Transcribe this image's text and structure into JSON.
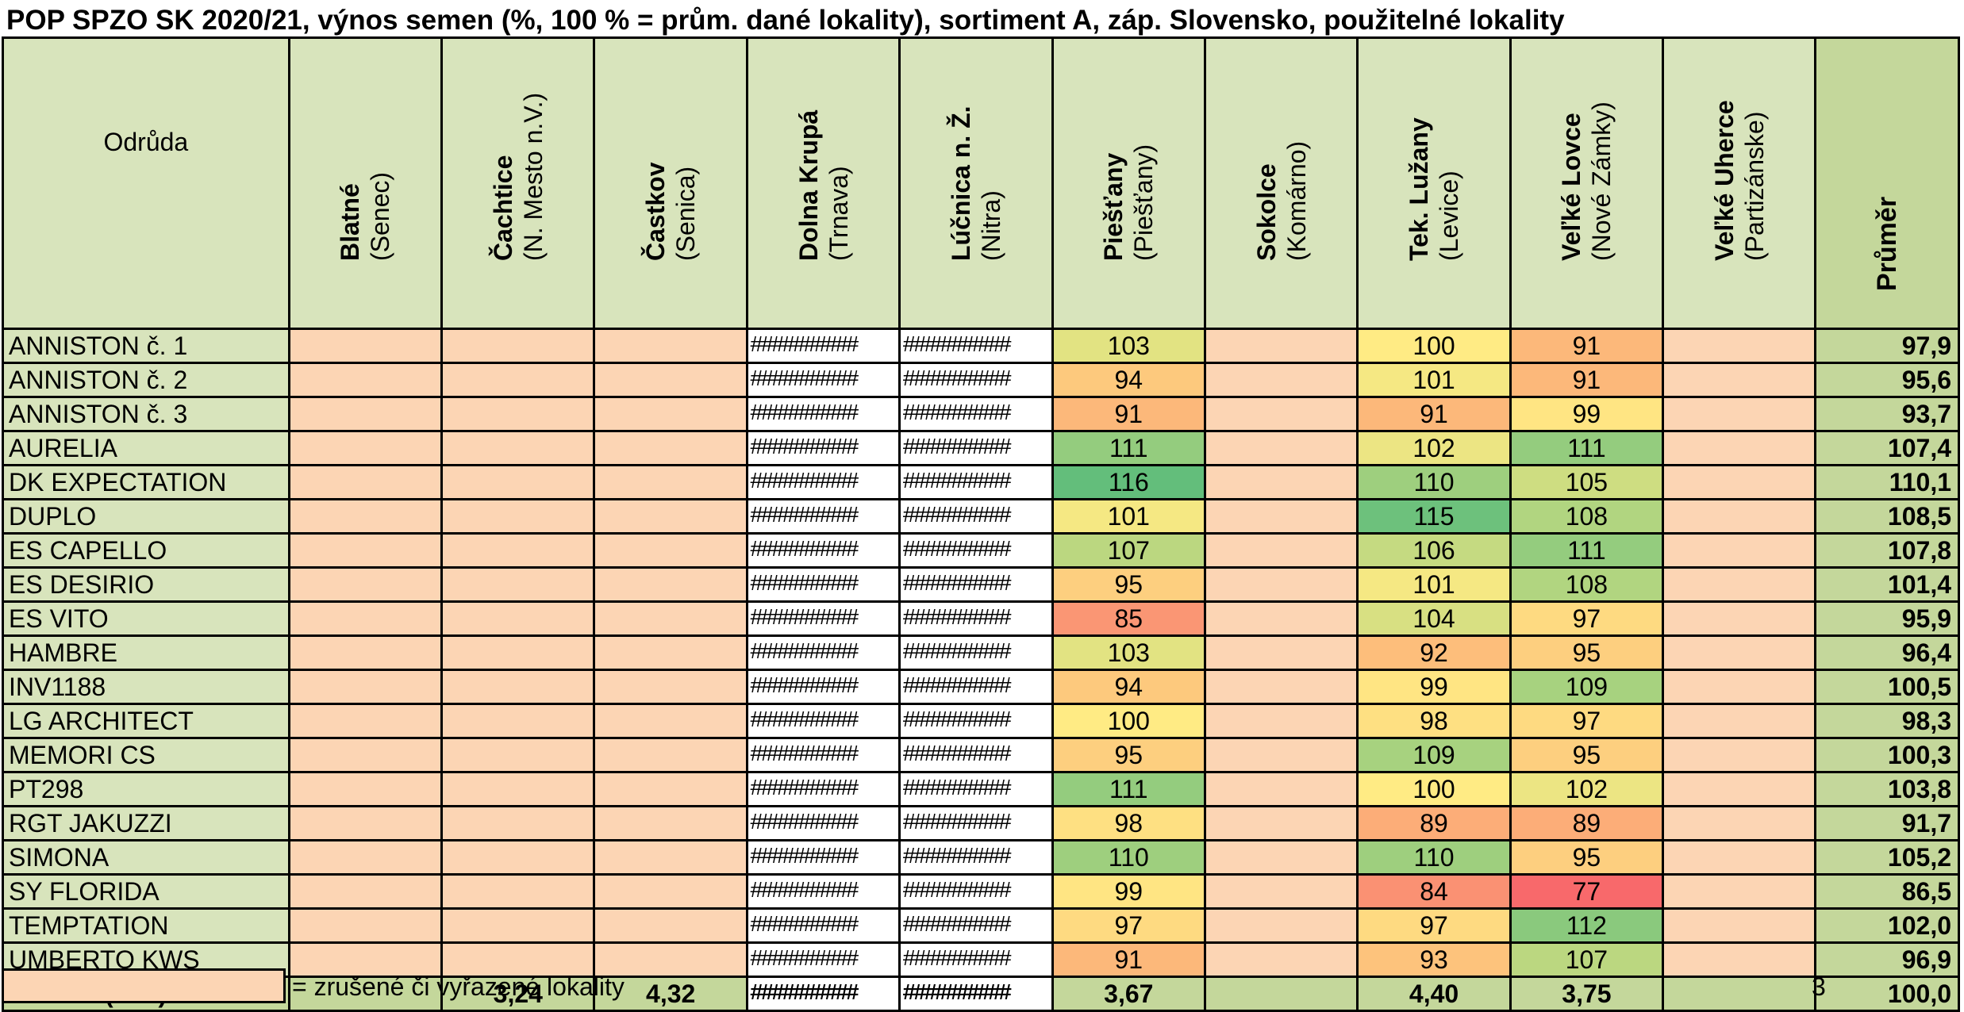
{
  "title": "POP SPZO SK 2020/21, výnos semen (%, 100 % = prům. dané lokality), sortiment A, záp. Slovensko, použitelné lokality",
  "header": {
    "variety": "Odrůda",
    "locations": [
      {
        "name": "Blatné",
        "district": "(Senec)",
        "status": "cancelled"
      },
      {
        "name": "Čachtice",
        "district": "(N. Mesto n.V.)",
        "status": "cancelled"
      },
      {
        "name": "Častkov",
        "district": "(Senica)",
        "status": "cancelled"
      },
      {
        "name": "Dolna Krupá",
        "district": "(Trnava)",
        "status": "overflow"
      },
      {
        "name": "Lúčnica n. Ž.",
        "district": "(Nitra)",
        "status": "overflow"
      },
      {
        "name": "Piešťany",
        "district": "(Piešťany)",
        "status": "valid"
      },
      {
        "name": "Sokolce",
        "district": "(Komárno)",
        "status": "cancelled"
      },
      {
        "name": "Tek. Lužany",
        "district": "(Levice)",
        "status": "valid"
      },
      {
        "name": "Veľké Lovce",
        "district": "(Nové Zámky)",
        "status": "valid"
      },
      {
        "name": "Veľké Uherce",
        "district": "(Partizánske)",
        "status": "cancelled"
      }
    ],
    "average": "Průměr"
  },
  "overflow_text": "##########",
  "rows": [
    {
      "name": "ANNISTON   č. 1",
      "piestany": "103",
      "levice": "100",
      "lovce": "91",
      "avg": "97,9"
    },
    {
      "name": "ANNISTON   č. 2",
      "piestany": "94",
      "levice": "101",
      "lovce": "91",
      "avg": "95,6"
    },
    {
      "name": "ANNISTON   č. 3",
      "piestany": "91",
      "levice": "91",
      "lovce": "99",
      "avg": "93,7"
    },
    {
      "name": "AURELIA",
      "piestany": "111",
      "levice": "102",
      "lovce": "111",
      "avg": "107,4"
    },
    {
      "name": "DK EXPECTATION",
      "piestany": "116",
      "levice": "110",
      "lovce": "105",
      "avg": "110,1"
    },
    {
      "name": "DUPLO",
      "piestany": "101",
      "levice": "115",
      "lovce": "108",
      "avg": "108,5"
    },
    {
      "name": "ES CAPELLO",
      "piestany": "107",
      "levice": "106",
      "lovce": "111",
      "avg": "107,8"
    },
    {
      "name": "ES DESIRIO",
      "piestany": "95",
      "levice": "101",
      "lovce": "108",
      "avg": "101,4"
    },
    {
      "name": "ES VITO",
      "piestany": "85",
      "levice": "104",
      "lovce": "97",
      "avg": "95,9"
    },
    {
      "name": "HAMBRE",
      "piestany": "103",
      "levice": "92",
      "lovce": "95",
      "avg": "96,4"
    },
    {
      "name": "INV1188",
      "piestany": "94",
      "levice": "99",
      "lovce": "109",
      "avg": "100,5"
    },
    {
      "name": "LG ARCHITECT",
      "piestany": "100",
      "levice": "98",
      "lovce": "97",
      "avg": "98,3"
    },
    {
      "name": "MEMORI CS",
      "piestany": "95",
      "levice": "109",
      "lovce": "95",
      "avg": "100,3"
    },
    {
      "name": "PT298",
      "piestany": "111",
      "levice": "100",
      "lovce": "102",
      "avg": "103,8"
    },
    {
      "name": "RGT JAKUZZI",
      "piestany": "98",
      "levice": "89",
      "lovce": "89",
      "avg": "91,7"
    },
    {
      "name": "SIMONA",
      "piestany": "110",
      "levice": "110",
      "lovce": "95",
      "avg": "105,2"
    },
    {
      "name": "SY FLORIDA",
      "piestany": "99",
      "levice": "84",
      "lovce": "77",
      "avg": "86,5"
    },
    {
      "name": "TEMPTATION",
      "piestany": "97",
      "levice": "97",
      "lovce": "112",
      "avg": "102,0"
    },
    {
      "name": "UMBERTO KWS",
      "piestany": "91",
      "levice": "93",
      "lovce": "107",
      "avg": "96,9"
    }
  ],
  "total": {
    "label": "Průměr (t/ha)",
    "cachtice": "3,24",
    "castkov": "4,32",
    "piestany": "3,67",
    "levice": "4,40",
    "lovce": "3,75",
    "avg": "100,0"
  },
  "legend": {
    "text": "= zrušené či vyřazené lokality",
    "color": "#fcd5b4"
  },
  "page_number": "3",
  "colors": {
    "header": "#d8e4bc",
    "average_column": "#c4d79b",
    "cancelled": "#fcd5b4",
    "scale_low": "#f8696b",
    "scale_mid": "#ffeb84",
    "scale_high": "#63be7b"
  }
}
